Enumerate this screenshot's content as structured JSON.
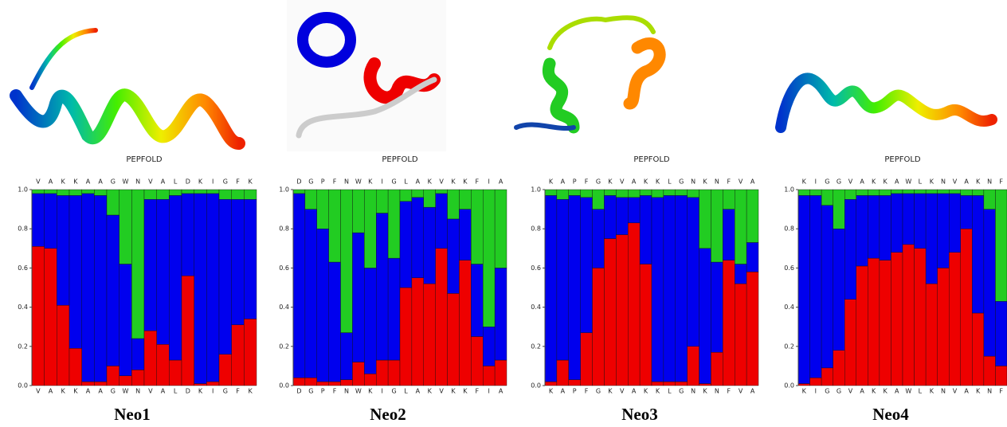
{
  "chart_data": [
    {
      "type": "stacked-bar",
      "title": "Neo1",
      "subtitle": "PEPFOLD",
      "categories": [
        "V",
        "A",
        "K",
        "K",
        "A",
        "A",
        "G",
        "W",
        "N",
        "V",
        "A",
        "L",
        "D",
        "K",
        "I",
        "G",
        "F",
        "K"
      ],
      "series": [
        {
          "color": "#ee0000",
          "values": [
            0.71,
            0.7,
            0.41,
            0.19,
            0.02,
            0.02,
            0.1,
            0.05,
            0.08,
            0.28,
            0.21,
            0.13,
            0.56,
            0.01,
            0.02,
            0.16,
            0.31,
            0.34
          ]
        },
        {
          "color": "#0000ee",
          "values": [
            0.27,
            0.28,
            0.56,
            0.78,
            0.96,
            0.95,
            0.77,
            0.57,
            0.16,
            0.67,
            0.74,
            0.84,
            0.42,
            0.97,
            0.96,
            0.79,
            0.64,
            0.61
          ]
        },
        {
          "color": "#22cc22",
          "values": [
            0.02,
            0.02,
            0.03,
            0.03,
            0.02,
            0.03,
            0.13,
            0.38,
            0.76,
            0.05,
            0.05,
            0.03,
            0.02,
            0.02,
            0.02,
            0.05,
            0.05,
            0.05
          ]
        }
      ],
      "ylim": [
        0,
        1
      ],
      "yticks": [
        {
          "value": 0,
          "label": "0.0"
        },
        0.2,
        0.4,
        0.6,
        0.8,
        {
          "value": 1,
          "label": "1.0"
        }
      ]
    },
    {
      "type": "stacked-bar",
      "title": "Neo2",
      "subtitle": "PEPFOLD",
      "categories": [
        "D",
        "G",
        "P",
        "F",
        "N",
        "W",
        "K",
        "I",
        "G",
        "L",
        "A",
        "K",
        "V",
        "K",
        "K",
        "F",
        "I",
        "A"
      ],
      "series": [
        {
          "color": "#ee0000",
          "values": [
            0.04,
            0.04,
            0.02,
            0.02,
            0.03,
            0.12,
            0.06,
            0.13,
            0.13,
            0.5,
            0.55,
            0.52,
            0.7,
            0.47,
            0.64,
            0.25,
            0.1,
            0.13
          ]
        },
        {
          "color": "#0000ee",
          "values": [
            0.94,
            0.86,
            0.78,
            0.61,
            0.24,
            0.66,
            0.54,
            0.75,
            0.52,
            0.44,
            0.41,
            0.39,
            0.28,
            0.38,
            0.26,
            0.37,
            0.2,
            0.47
          ]
        },
        {
          "color": "#22cc22",
          "values": [
            0.02,
            0.1,
            0.2,
            0.37,
            0.73,
            0.22,
            0.4,
            0.12,
            0.35,
            0.06,
            0.04,
            0.09,
            0.02,
            0.15,
            0.1,
            0.38,
            0.7,
            0.4
          ]
        }
      ],
      "ylim": [
        0,
        1
      ],
      "yticks": [
        {
          "value": 0,
          "label": "0.0"
        },
        0.2,
        0.4,
        0.6,
        0.8,
        {
          "value": 1,
          "label": "1.0"
        }
      ]
    },
    {
      "type": "stacked-bar",
      "title": "Neo3",
      "subtitle": "PEPFOLD",
      "categories": [
        "K",
        "A",
        "P",
        "F",
        "G",
        "K",
        "V",
        "A",
        "K",
        "K",
        "L",
        "G",
        "N",
        "K",
        "N",
        "F",
        "V",
        "A"
      ],
      "series": [
        {
          "color": "#ee0000",
          "values": [
            0.02,
            0.13,
            0.03,
            0.27,
            0.6,
            0.75,
            0.77,
            0.83,
            0.62,
            0.02,
            0.02,
            0.02,
            0.2,
            0.01,
            0.17,
            0.64,
            0.52,
            0.58
          ]
        },
        {
          "color": "#0000ee",
          "values": [
            0.95,
            0.82,
            0.94,
            0.69,
            0.3,
            0.22,
            0.19,
            0.13,
            0.35,
            0.94,
            0.95,
            0.95,
            0.76,
            0.69,
            0.46,
            0.26,
            0.1,
            0.15
          ]
        },
        {
          "color": "#22cc22",
          "values": [
            0.03,
            0.05,
            0.03,
            0.04,
            0.1,
            0.03,
            0.04,
            0.04,
            0.03,
            0.04,
            0.03,
            0.03,
            0.04,
            0.3,
            0.37,
            0.1,
            0.38,
            0.27
          ]
        }
      ],
      "ylim": [
        0,
        1
      ],
      "yticks": [
        {
          "value": 0,
          "label": "0.0"
        },
        0.2,
        0.4,
        0.6,
        0.8,
        {
          "value": 1,
          "label": "1.0"
        }
      ]
    },
    {
      "type": "stacked-bar",
      "title": "Neo4",
      "subtitle": "PEPFOLD",
      "categories": [
        "K",
        "I",
        "G",
        "G",
        "V",
        "A",
        "K",
        "K",
        "A",
        "W",
        "L",
        "K",
        "N",
        "V",
        "A",
        "K",
        "N",
        "F"
      ],
      "series": [
        {
          "color": "#ee0000",
          "values": [
            0.01,
            0.04,
            0.09,
            0.18,
            0.44,
            0.61,
            0.65,
            0.64,
            0.68,
            0.72,
            0.7,
            0.52,
            0.6,
            0.68,
            0.8,
            0.37,
            0.15,
            0.1
          ]
        },
        {
          "color": "#0000ee",
          "values": [
            0.96,
            0.93,
            0.83,
            0.62,
            0.51,
            0.36,
            0.32,
            0.33,
            0.3,
            0.26,
            0.28,
            0.46,
            0.38,
            0.3,
            0.17,
            0.6,
            0.75,
            0.33
          ]
        },
        {
          "color": "#22cc22",
          "values": [
            0.03,
            0.03,
            0.08,
            0.2,
            0.05,
            0.03,
            0.03,
            0.03,
            0.02,
            0.02,
            0.02,
            0.02,
            0.02,
            0.02,
            0.03,
            0.03,
            0.1,
            0.57
          ]
        }
      ],
      "ylim": [
        0,
        1
      ],
      "yticks": [
        {
          "value": 0,
          "label": "0.0"
        },
        0.2,
        0.4,
        0.6,
        0.8,
        {
          "value": 1,
          "label": "1.0"
        }
      ]
    }
  ]
}
